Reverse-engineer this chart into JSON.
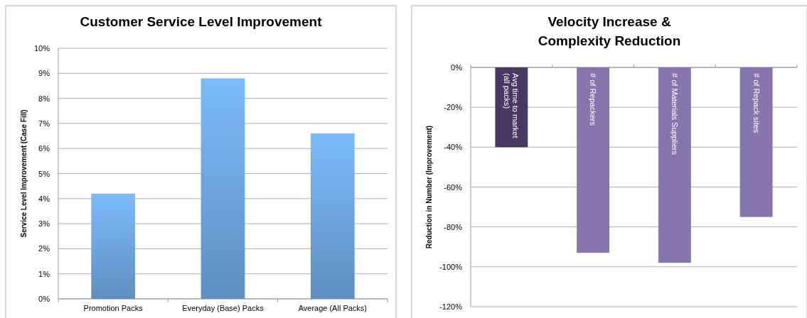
{
  "chart_data": [
    {
      "type": "bar",
      "title": "Customer Service Level Improvement",
      "ylabel": "Service Level Improvement (Case Fill)",
      "categories": [
        "Promotion Packs",
        "Everyday (Base) Packs",
        "Average (All Packs)"
      ],
      "values": [
        4.2,
        8.8,
        6.6
      ],
      "color": "#6a9fd6",
      "ylim": [
        0,
        10
      ],
      "yticks": [
        {
          "value": 0,
          "label": "0%"
        },
        {
          "value": 1,
          "label": "1%"
        },
        {
          "value": 2,
          "label": "2%"
        },
        {
          "value": 3,
          "label": "3%"
        },
        {
          "value": 4,
          "label": "4%"
        },
        {
          "value": 5,
          "label": "5%"
        },
        {
          "value": 6,
          "label": "6%"
        },
        {
          "value": 7,
          "label": "7%"
        },
        {
          "value": 8,
          "label": "8%"
        },
        {
          "value": 9,
          "label": "9%"
        },
        {
          "value": 10,
          "label": "10%"
        }
      ],
      "grid": "y"
    },
    {
      "type": "bar",
      "title": "Velocity Increase &\nComplexity Reduction",
      "ylabel": "Reduction in Number (Improvement)",
      "categories": [
        "Avg time to market (all packs)",
        "# of Repackers",
        "# of Materials Suppliers",
        "# of Repack sites"
      ],
      "values": [
        -40,
        -93,
        -98,
        -75
      ],
      "colors": [
        "#473a62",
        "#8775ae",
        "#8775ae",
        "#8775ae"
      ],
      "ylim": [
        -120,
        0
      ],
      "yticks": [
        {
          "value": -120,
          "label": "-120%"
        },
        {
          "value": -100,
          "label": "-100%"
        },
        {
          "value": -80,
          "label": "-80%"
        },
        {
          "value": -60,
          "label": "-60%"
        },
        {
          "value": -40,
          "label": "-40%"
        },
        {
          "value": -20,
          "label": "-20%"
        },
        {
          "value": 0,
          "label": "0%"
        }
      ],
      "grid": "y"
    }
  ]
}
